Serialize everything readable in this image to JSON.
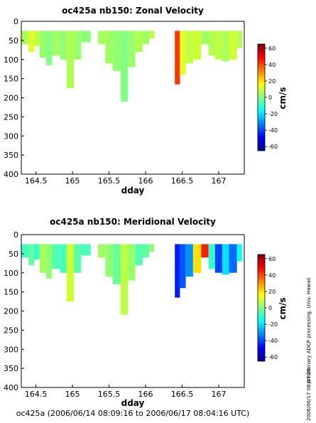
{
  "chart_data": [
    {
      "type": "heatmap",
      "title": "oc425a nb150: Zonal Velocity",
      "xlabel": "dday",
      "ylabel": "",
      "xlim": [
        164.3,
        167.35
      ],
      "ylim": [
        400,
        0
      ],
      "x_ticks": [
        164.5,
        165,
        165.5,
        166,
        166.5,
        167
      ],
      "x_tick_labels": [
        "164.5",
        "165",
        "165.5",
        "166",
        "166.5",
        "167"
      ],
      "y_ticks": [
        0,
        50,
        100,
        150,
        200,
        250,
        300,
        350,
        400
      ],
      "y_tick_labels": [
        "0",
        "50",
        "100",
        "150",
        "200",
        "250",
        "300",
        "350",
        "400"
      ],
      "colorbar": {
        "label": "cm/s",
        "range": [
          -65,
          65
        ],
        "ticks": [
          60,
          40,
          20,
          0,
          -20,
          -40,
          -60
        ],
        "tick_labels": [
          "60",
          "40",
          "20",
          "0",
          "-20",
          "-40",
          "-60"
        ]
      },
      "grid": false,
      "columns": [
        {
          "x0": 164.3,
          "x1": 164.4,
          "top": 25,
          "bottom": 60,
          "value": 5
        },
        {
          "x0": 164.4,
          "x1": 164.48,
          "top": 25,
          "bottom": 80,
          "value": 12
        },
        {
          "x0": 164.48,
          "x1": 164.55,
          "top": 25,
          "bottom": 65,
          "value": 8
        },
        {
          "x0": 164.55,
          "x1": 164.64,
          "top": 25,
          "bottom": 95,
          "value": 3
        },
        {
          "x0": 164.64,
          "x1": 164.72,
          "top": 25,
          "bottom": 115,
          "value": 0
        },
        {
          "x0": 164.72,
          "x1": 164.83,
          "top": 25,
          "bottom": 90,
          "value": 4
        },
        {
          "x0": 164.83,
          "x1": 164.92,
          "top": 25,
          "bottom": 100,
          "value": 2
        },
        {
          "x0": 164.92,
          "x1": 165.02,
          "top": 25,
          "bottom": 175,
          "value": 6
        },
        {
          "x0": 165.02,
          "x1": 165.12,
          "top": 25,
          "bottom": 100,
          "value": 3
        },
        {
          "x0": 165.12,
          "x1": 165.25,
          "top": 25,
          "bottom": 55,
          "value": 1
        },
        {
          "x0": 165.35,
          "x1": 165.45,
          "top": 25,
          "bottom": 60,
          "value": 5
        },
        {
          "x0": 165.45,
          "x1": 165.55,
          "top": 25,
          "bottom": 110,
          "value": 4
        },
        {
          "x0": 165.55,
          "x1": 165.66,
          "top": 25,
          "bottom": 130,
          "value": 2
        },
        {
          "x0": 165.66,
          "x1": 165.76,
          "top": 25,
          "bottom": 210,
          "value": 0
        },
        {
          "x0": 165.76,
          "x1": 165.86,
          "top": 25,
          "bottom": 120,
          "value": 3
        },
        {
          "x0": 165.86,
          "x1": 165.96,
          "top": 25,
          "bottom": 80,
          "value": 6
        },
        {
          "x0": 165.96,
          "x1": 166.05,
          "top": 25,
          "bottom": 60,
          "value": 4
        },
        {
          "x0": 166.05,
          "x1": 166.12,
          "top": 25,
          "bottom": 45,
          "value": 8
        },
        {
          "x0": 166.4,
          "x1": 166.47,
          "top": 25,
          "bottom": 165,
          "value": 42
        },
        {
          "x0": 166.47,
          "x1": 166.55,
          "top": 25,
          "bottom": 140,
          "value": 12
        },
        {
          "x0": 166.55,
          "x1": 166.65,
          "top": 25,
          "bottom": 110,
          "value": 8
        },
        {
          "x0": 166.65,
          "x1": 166.76,
          "top": 25,
          "bottom": 100,
          "value": 10
        },
        {
          "x0": 166.76,
          "x1": 166.86,
          "top": 25,
          "bottom": 60,
          "value": 4
        },
        {
          "x0": 166.86,
          "x1": 166.95,
          "top": 25,
          "bottom": 90,
          "value": 6
        },
        {
          "x0": 166.95,
          "x1": 167.05,
          "top": 25,
          "bottom": 100,
          "value": 8
        },
        {
          "x0": 167.05,
          "x1": 167.14,
          "top": 25,
          "bottom": 105,
          "value": 5
        },
        {
          "x0": 167.14,
          "x1": 167.25,
          "top": 25,
          "bottom": 100,
          "value": 10
        },
        {
          "x0": 167.25,
          "x1": 167.32,
          "top": 25,
          "bottom": 70,
          "value": 6
        }
      ]
    },
    {
      "type": "heatmap",
      "title": "oc425a nb150: Meridional Velocity",
      "xlabel": "dday",
      "ylabel": "",
      "xlim": [
        164.3,
        167.35
      ],
      "ylim": [
        400,
        0
      ],
      "x_ticks": [
        164.5,
        165,
        165.5,
        166,
        166.5,
        167
      ],
      "x_tick_labels": [
        "164.5",
        "165",
        "165.5",
        "166",
        "166.5",
        "167"
      ],
      "y_ticks": [
        0,
        50,
        100,
        150,
        200,
        250,
        300,
        350,
        400
      ],
      "y_tick_labels": [
        "0",
        "50",
        "100",
        "150",
        "200",
        "250",
        "300",
        "350",
        "400"
      ],
      "colorbar": {
        "label": "cm/s",
        "range": [
          -65,
          65
        ],
        "ticks": [
          60,
          40,
          20,
          0,
          -20,
          -40,
          -60
        ],
        "tick_labels": [
          "60",
          "40",
          "20",
          "0",
          "-20",
          "-40",
          "-60"
        ]
      },
      "grid": false,
      "columns": [
        {
          "x0": 164.3,
          "x1": 164.4,
          "top": 25,
          "bottom": 60,
          "value": -8
        },
        {
          "x0": 164.4,
          "x1": 164.48,
          "top": 25,
          "bottom": 80,
          "value": -4
        },
        {
          "x0": 164.48,
          "x1": 164.55,
          "top": 25,
          "bottom": 65,
          "value": -10
        },
        {
          "x0": 164.55,
          "x1": 164.64,
          "top": 25,
          "bottom": 100,
          "value": 5
        },
        {
          "x0": 164.64,
          "x1": 164.72,
          "top": 25,
          "bottom": 115,
          "value": 2
        },
        {
          "x0": 164.72,
          "x1": 164.83,
          "top": 25,
          "bottom": 90,
          "value": -6
        },
        {
          "x0": 164.83,
          "x1": 164.92,
          "top": 25,
          "bottom": 100,
          "value": -8
        },
        {
          "x0": 164.92,
          "x1": 165.02,
          "top": 25,
          "bottom": 175,
          "value": 10
        },
        {
          "x0": 165.02,
          "x1": 165.12,
          "top": 25,
          "bottom": 100,
          "value": -5
        },
        {
          "x0": 165.12,
          "x1": 165.25,
          "top": 25,
          "bottom": 55,
          "value": -7
        },
        {
          "x0": 165.35,
          "x1": 165.45,
          "top": 25,
          "bottom": 60,
          "value": 4
        },
        {
          "x0": 165.45,
          "x1": 165.55,
          "top": 25,
          "bottom": 110,
          "value": 2
        },
        {
          "x0": 165.55,
          "x1": 165.66,
          "top": 25,
          "bottom": 130,
          "value": -3
        },
        {
          "x0": 165.66,
          "x1": 165.76,
          "top": 25,
          "bottom": 210,
          "value": 8
        },
        {
          "x0": 165.76,
          "x1": 165.86,
          "top": 25,
          "bottom": 120,
          "value": 3
        },
        {
          "x0": 165.86,
          "x1": 165.96,
          "top": 25,
          "bottom": 80,
          "value": -6
        },
        {
          "x0": 165.96,
          "x1": 166.05,
          "top": 25,
          "bottom": 60,
          "value": -4
        },
        {
          "x0": 166.05,
          "x1": 166.12,
          "top": 25,
          "bottom": 45,
          "value": 2
        },
        {
          "x0": 166.4,
          "x1": 166.47,
          "top": 25,
          "bottom": 165,
          "value": -45
        },
        {
          "x0": 166.47,
          "x1": 166.55,
          "top": 25,
          "bottom": 140,
          "value": -38
        },
        {
          "x0": 166.55,
          "x1": 166.65,
          "top": 25,
          "bottom": 110,
          "value": -30
        },
        {
          "x0": 166.65,
          "x1": 166.76,
          "top": 25,
          "bottom": 100,
          "value": 20
        },
        {
          "x0": 166.76,
          "x1": 166.86,
          "top": 25,
          "bottom": 60,
          "value": 45
        },
        {
          "x0": 166.86,
          "x1": 166.95,
          "top": 25,
          "bottom": 90,
          "value": -10
        },
        {
          "x0": 166.95,
          "x1": 167.05,
          "top": 25,
          "bottom": 100,
          "value": -40
        },
        {
          "x0": 167.05,
          "x1": 167.14,
          "top": 25,
          "bottom": 105,
          "value": -20
        },
        {
          "x0": 167.14,
          "x1": 167.25,
          "top": 25,
          "bottom": 100,
          "value": -35
        },
        {
          "x0": 167.25,
          "x1": 167.32,
          "top": 25,
          "bottom": 70,
          "value": -15
        }
      ]
    }
  ],
  "footer": "oc425a (2006/06/14 08:09:16 to 2006/06/17 08:04:16 UTC)",
  "side_note_processing": "preliminary ADCP processing,  Univ. Hawaii",
  "side_note_timestamp": "2006/06/17 08:07:20",
  "colormap": [
    "#00008f",
    "#0000ff",
    "#0080ff",
    "#00ffff",
    "#80ff80",
    "#ffff00",
    "#ff8000",
    "#ff0000",
    "#800000"
  ]
}
